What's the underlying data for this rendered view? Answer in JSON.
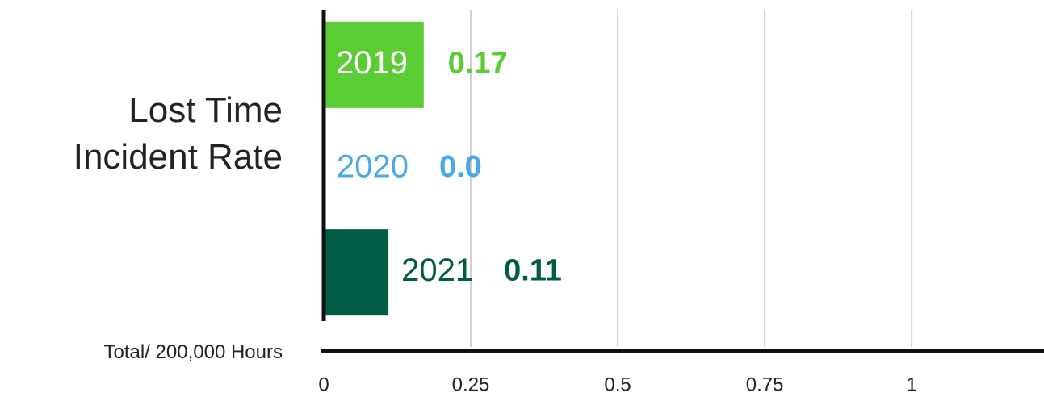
{
  "chart_data": {
    "type": "hbar",
    "title": "Lost Time Incident Rate",
    "xlabel": "Total/ 200,000 Hours",
    "categories": [
      "2019",
      "2020",
      "2021"
    ],
    "values": [
      0.17,
      0,
      0.11
    ],
    "value_labels": [
      "0.17",
      "0.0",
      "0.11"
    ],
    "colors": [
      "#5ccc35",
      "#4aa8e8",
      "#005c45"
    ],
    "xlim": [
      0,
      1.225
    ],
    "xticks": [
      0,
      0.25,
      0.5,
      0.75,
      1
    ],
    "grid": true
  }
}
